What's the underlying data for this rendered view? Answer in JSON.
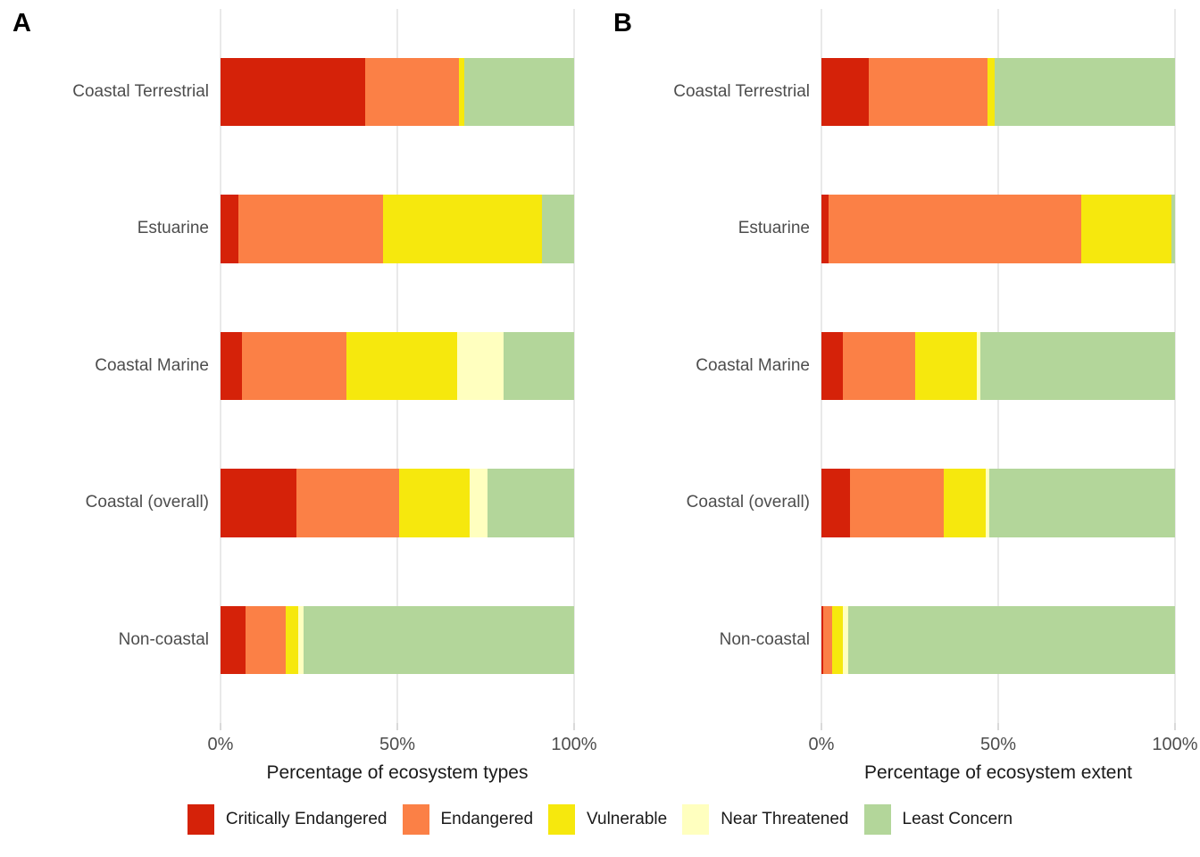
{
  "figure": {
    "background": "#ffffff",
    "axis_text_color": "#4d4d4d",
    "axis_title_color": "#1a1a1a",
    "gridline_color": "#e9e9e9",
    "tick_mark_color": "#d9d9d9"
  },
  "legend": {
    "items": [
      {
        "label": "Critically Endangered",
        "color": "#d52209"
      },
      {
        "label": "Endangered",
        "color": "#fb8046"
      },
      {
        "label": "Vulnerable",
        "color": "#f6e80d"
      },
      {
        "label": "Near Threatened",
        "color": "#ffffbf"
      },
      {
        "label": "Least Concern",
        "color": "#b3d69a"
      }
    ]
  },
  "chart_data": [
    {
      "type": "bar",
      "orientation": "horizontal",
      "stacked": true,
      "panel_label": "A",
      "xlabel": "Percentage of ecosystem types",
      "xticks": [
        "0%",
        "50%",
        "100%"
      ],
      "xlim": [
        0,
        100
      ],
      "grid": true,
      "legend_position": "bottom",
      "categories": [
        "Coastal Terrestrial",
        "Estuarine",
        "Coastal Marine",
        "Coastal (overall)",
        "Non-coastal"
      ],
      "series": [
        {
          "name": "Critically Endangered",
          "color": "#d52209",
          "values": [
            41,
            5,
            6,
            21.5,
            7
          ]
        },
        {
          "name": "Endangered",
          "color": "#fb8046",
          "values": [
            26.5,
            41,
            29.5,
            29,
            11.5
          ]
        },
        {
          "name": "Vulnerable",
          "color": "#f6e80d",
          "values": [
            1.5,
            45,
            31.5,
            20,
            3.5
          ]
        },
        {
          "name": "Near Threatened",
          "color": "#ffffbf",
          "values": [
            0,
            0,
            13,
            5,
            1.5
          ]
        },
        {
          "name": "Least Concern",
          "color": "#b3d69a",
          "values": [
            31,
            9,
            20,
            24.5,
            76.5
          ]
        }
      ]
    },
    {
      "type": "bar",
      "orientation": "horizontal",
      "stacked": true,
      "panel_label": "B",
      "xlabel": "Percentage of ecosystem extent",
      "xticks": [
        "0%",
        "50%",
        "100%"
      ],
      "xlim": [
        0,
        100
      ],
      "grid": true,
      "legend_position": "bottom",
      "categories": [
        "Coastal Terrestrial",
        "Estuarine",
        "Coastal Marine",
        "Coastal (overall)",
        "Non-coastal"
      ],
      "series": [
        {
          "name": "Critically Endangered",
          "color": "#d52209",
          "values": [
            13.5,
            2,
            6,
            8,
            0.5
          ]
        },
        {
          "name": "Endangered",
          "color": "#fb8046",
          "values": [
            33.5,
            71.5,
            20.5,
            26.5,
            2.5
          ]
        },
        {
          "name": "Vulnerable",
          "color": "#f6e80d",
          "values": [
            2,
            25.5,
            17.5,
            12,
            3
          ]
        },
        {
          "name": "Near Threatened",
          "color": "#ffffbf",
          "values": [
            0,
            0,
            1,
            1,
            1.5
          ]
        },
        {
          "name": "Least Concern",
          "color": "#b3d69a",
          "values": [
            51,
            1,
            55,
            52.5,
            92.5
          ]
        }
      ]
    }
  ]
}
